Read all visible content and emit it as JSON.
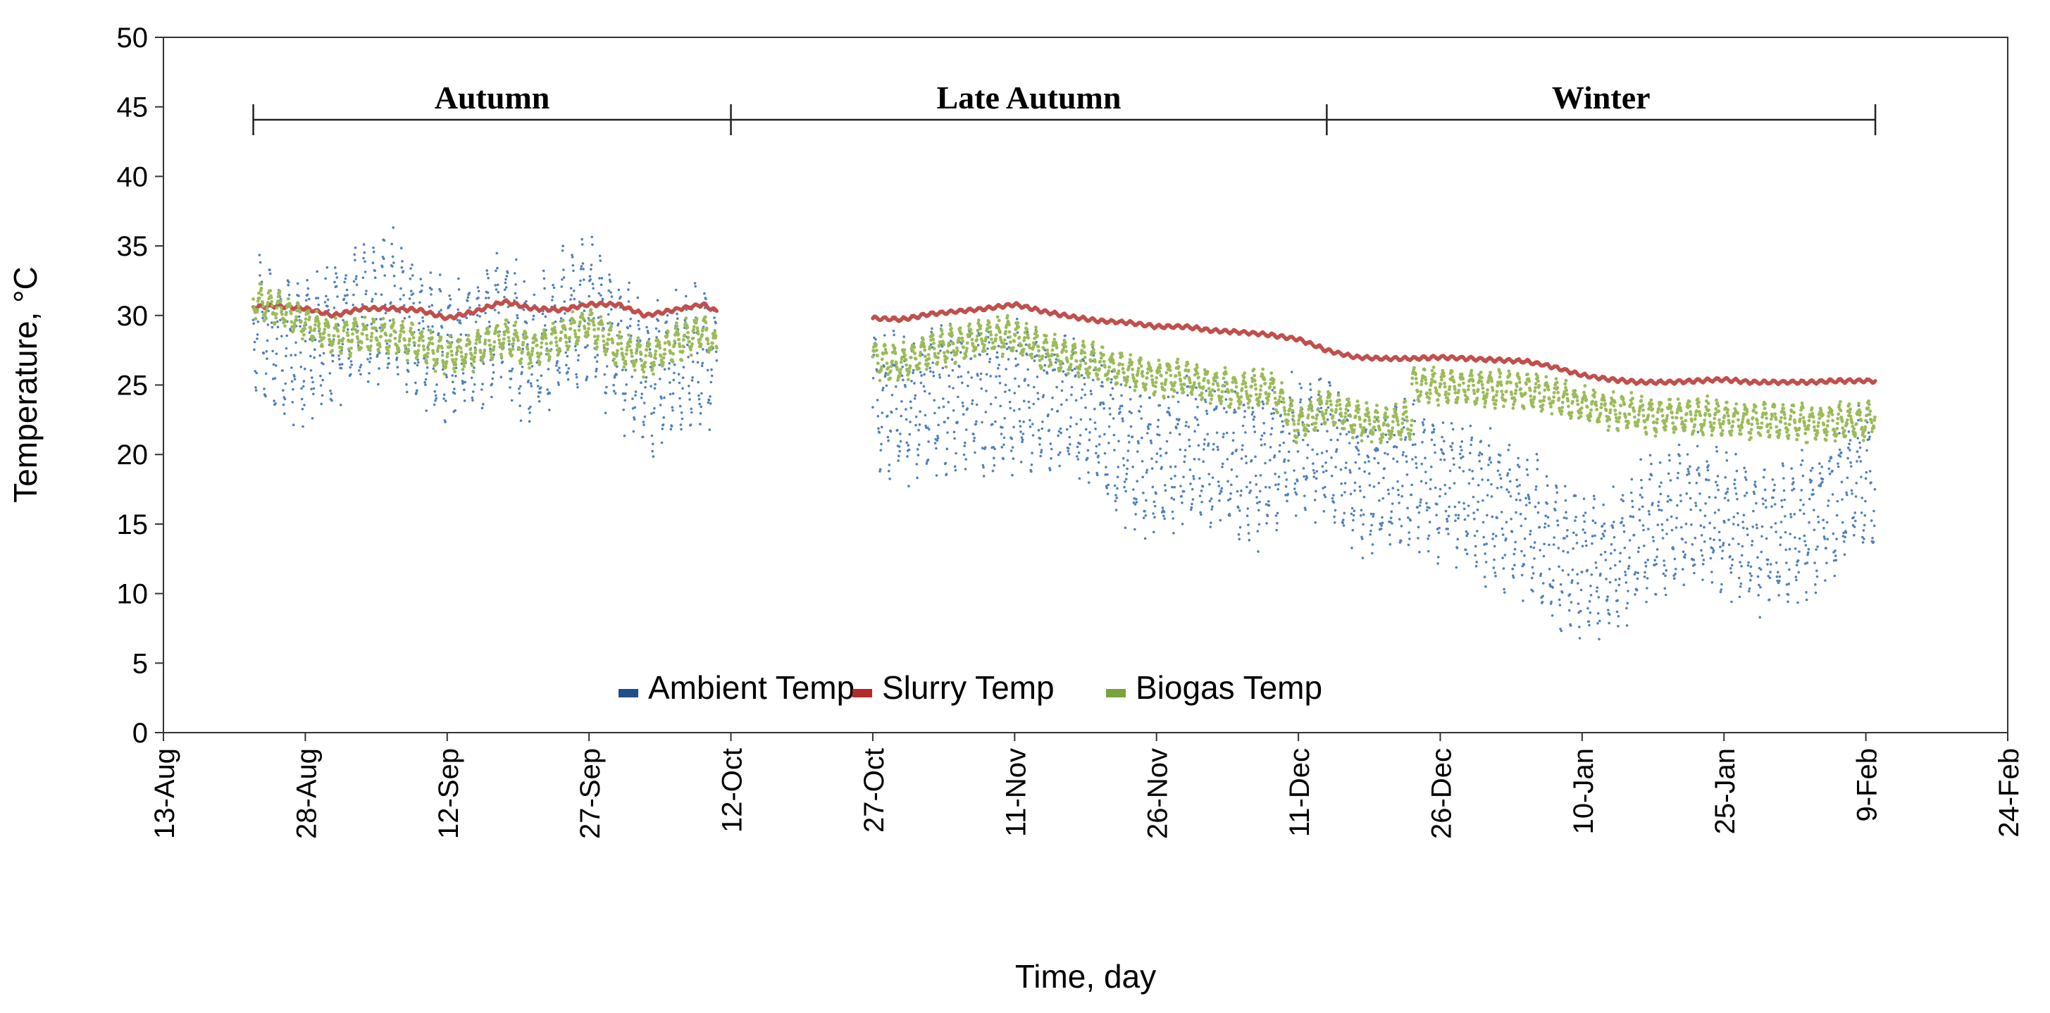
{
  "chart_data": {
    "type": "scatter",
    "xlabel": "Time, day",
    "ylabel": "Temperature, °C",
    "ylim": [
      0,
      50
    ],
    "y_ticks": [
      0,
      5,
      10,
      15,
      20,
      25,
      30,
      35,
      40,
      45,
      50
    ],
    "x_ticks": [
      {
        "label": "13-Aug",
        "day": 0
      },
      {
        "label": "28-Aug",
        "day": 15
      },
      {
        "label": "12-Sep",
        "day": 30
      },
      {
        "label": "27-Sep",
        "day": 45
      },
      {
        "label": "12-Oct",
        "day": 60
      },
      {
        "label": "27-Oct",
        "day": 75
      },
      {
        "label": "11-Nov",
        "day": 90
      },
      {
        "label": "26-Nov",
        "day": 105
      },
      {
        "label": "11-Dec",
        "day": 120
      },
      {
        "label": "26-Dec",
        "day": 135
      },
      {
        "label": "10-Jan",
        "day": 150
      },
      {
        "label": "25-Jan",
        "day": 165
      },
      {
        "label": "9-Feb",
        "day": 180
      },
      {
        "label": "24-Feb",
        "day": 195
      }
    ],
    "xlim": [
      0,
      195
    ],
    "grid": false,
    "legend_position": "bottom-center",
    "seasons": [
      {
        "label": "Autumn",
        "start_day": 9.5,
        "end_day": 60
      },
      {
        "label": "Late Autumn",
        "start_day": 60,
        "end_day": 123
      },
      {
        "label": "Winter",
        "start_day": 123,
        "end_day": 181
      }
    ],
    "series": [
      {
        "name": "Ambient Temp",
        "color": "#4f81bd",
        "legend_color": "#1f4e8c",
        "segments": [
          {
            "x": [
              9.5,
              12,
              15,
              18,
              21,
              24,
              27,
              30,
              33,
              36,
              39,
              42,
              45,
              48,
              51,
              54,
              57,
              58.5
            ],
            "y": [
              30,
              28,
              27.5,
              29,
              30,
              30.5,
              29,
              27.5,
              28,
              29.5,
              27,
              29,
              31,
              28,
              25.5,
              26,
              27,
              26
            ]
          },
          {
            "x": [
              75,
              78,
              81,
              84,
              87,
              90,
              93,
              96,
              99,
              102,
              105,
              108,
              111,
              114,
              117,
              120,
              123,
              126,
              129,
              132,
              135,
              138,
              141,
              144,
              147,
              150,
              153,
              156,
              159,
              162,
              165,
              168,
              171,
              174,
              177,
              180,
              181
            ],
            "y": [
              24,
              23,
              24,
              24,
              24,
              24,
              23.5,
              24,
              22,
              20,
              19,
              20,
              20,
              19,
              19,
              21,
              20.5,
              18,
              18,
              18.5,
              18,
              17,
              16,
              15,
              13,
              12,
              12,
              14,
              15,
              16,
              15,
              14,
              14,
              15,
              17,
              18,
              18
            ]
          }
        ]
      },
      {
        "name": "Slurry Temp",
        "color": "#c0504d",
        "legend_color": "#b22a2a",
        "segments": [
          {
            "x": [
              9.5,
              12,
              15,
              18,
              21,
              24,
              27,
              30,
              33,
              36,
              39,
              42,
              45,
              48,
              51,
              54,
              57,
              58.5
            ],
            "y": [
              30.6,
              30.7,
              30.5,
              30,
              30.5,
              30.5,
              30.4,
              29.8,
              30.3,
              31,
              30.5,
              30.4,
              30.8,
              30.8,
              30,
              30.4,
              30.8,
              30.3
            ]
          },
          {
            "x": [
              75,
              78,
              81,
              84,
              87,
              90,
              93,
              96,
              99,
              102,
              105,
              108,
              111,
              114,
              117,
              120,
              123,
              126,
              129,
              132,
              135,
              138,
              141,
              144,
              147,
              150,
              153,
              156,
              159,
              162,
              165,
              168,
              171,
              174,
              177,
              180,
              181
            ],
            "y": [
              29.8,
              29.7,
              30.1,
              30.3,
              30.5,
              30.8,
              30.3,
              29.9,
              29.6,
              29.5,
              29.2,
              29.2,
              28.9,
              28.8,
              28.6,
              28.3,
              27.5,
              27,
              26.9,
              26.9,
              27,
              26.9,
              26.8,
              26.7,
              26.3,
              25.7,
              25.4,
              25.2,
              25.2,
              25.3,
              25.4,
              25.2,
              25.2,
              25.2,
              25.3,
              25.3,
              25.3
            ]
          }
        ]
      },
      {
        "name": "Biogas Temp",
        "color": "#9bbb59",
        "legend_color": "#77a33a",
        "segments": [
          {
            "x": [
              9.5,
              12,
              15,
              18,
              21,
              24,
              27,
              30,
              33,
              36,
              39,
              42,
              45,
              48,
              51,
              54,
              57,
              58.5
            ],
            "y": [
              31,
              30.5,
              29.5,
              28.5,
              28.5,
              28.5,
              28,
              27,
              27.5,
              28.5,
              27.5,
              28.5,
              29.5,
              27.5,
              27,
              28,
              29,
              27.5
            ]
          },
          {
            "x": [
              75,
              78,
              81,
              84,
              87,
              90,
              93,
              96,
              99,
              102,
              105,
              108,
              111,
              114,
              117,
              120,
              123,
              126,
              129,
              132
            ],
            "y": [
              27,
              26.5,
              27.5,
              28,
              28.5,
              28.5,
              27.5,
              27,
              26.5,
              26,
              25.5,
              25.5,
              25,
              24.5,
              25,
              22,
              23.5,
              22.5,
              22,
              22.5
            ]
          },
          {
            "x": [
              132,
              135,
              138,
              141,
              144,
              147,
              150,
              153,
              156,
              159,
              162,
              165,
              168,
              171,
              174,
              177,
              180,
              181
            ],
            "y": [
              25,
              24.9,
              24.8,
              24.7,
              24.6,
              24.2,
              23.6,
              23.2,
              22.9,
              22.8,
              22.7,
              22.6,
              22.5,
              22.4,
              22.3,
              22.3,
              22.4,
              22.8
            ]
          }
        ]
      }
    ]
  }
}
